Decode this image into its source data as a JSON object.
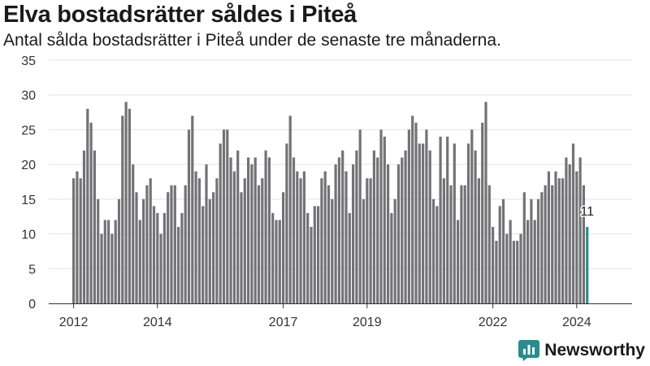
{
  "header": {
    "title": "Elva bostadsrätter såldes i Piteå",
    "subtitle": "Antal sålda bostadsrätter i Piteå under de senaste tre månaderna."
  },
  "brand": {
    "name": "Newsworthy",
    "icon": "newsworthy-logo-icon",
    "color": "#2a8c8c"
  },
  "chart_data": {
    "type": "bar",
    "title": "",
    "xlabel": "",
    "ylabel": "",
    "ylim": [
      0,
      35
    ],
    "yticks": [
      0,
      5,
      10,
      15,
      20,
      25,
      30,
      35
    ],
    "grid": true,
    "legend": "none",
    "bar_color": "#737276",
    "highlight_color": "#2a8c8c",
    "x_start": "2012-01",
    "x_tick_labels": [
      {
        "label": "2012",
        "x": "2012-01"
      },
      {
        "label": "2014",
        "x": "2014-01"
      },
      {
        "label": "2017",
        "x": "2017-01"
      },
      {
        "label": "2019",
        "x": "2019-01"
      },
      {
        "label": "2022",
        "x": "2022-01"
      },
      {
        "label": "2024",
        "x": "2024-01"
      }
    ],
    "highlight_label": "11",
    "values": [
      18,
      19,
      18,
      22,
      28,
      26,
      22,
      15,
      10,
      12,
      12,
      10,
      12,
      15,
      27,
      29,
      28,
      20,
      16,
      12,
      15,
      17,
      18,
      14,
      13,
      10,
      13,
      16,
      17,
      17,
      11,
      13,
      17,
      25,
      27,
      19,
      18,
      14,
      20,
      15,
      16,
      18,
      23,
      25,
      25,
      21,
      19,
      22,
      16,
      18,
      21,
      20,
      21,
      17,
      18,
      22,
      21,
      13,
      12,
      12,
      16,
      23,
      27,
      21,
      19,
      18,
      19,
      13,
      11,
      14,
      14,
      18,
      19,
      17,
      15,
      20,
      21,
      22,
      19,
      13,
      20,
      22,
      25,
      15,
      18,
      18,
      22,
      21,
      25,
      24,
      20,
      13,
      15,
      20,
      21,
      22,
      25,
      27,
      26,
      23,
      23,
      25,
      22,
      15,
      14,
      24,
      18,
      24,
      17,
      23,
      12,
      17,
      17,
      23,
      25,
      22,
      18,
      26,
      29,
      17,
      11,
      9,
      14,
      15,
      10,
      12,
      9,
      9,
      10,
      16,
      12,
      15,
      12,
      15,
      16,
      17,
      19,
      17,
      19,
      18,
      18,
      21,
      20,
      23,
      19,
      21,
      17,
      11
    ]
  }
}
